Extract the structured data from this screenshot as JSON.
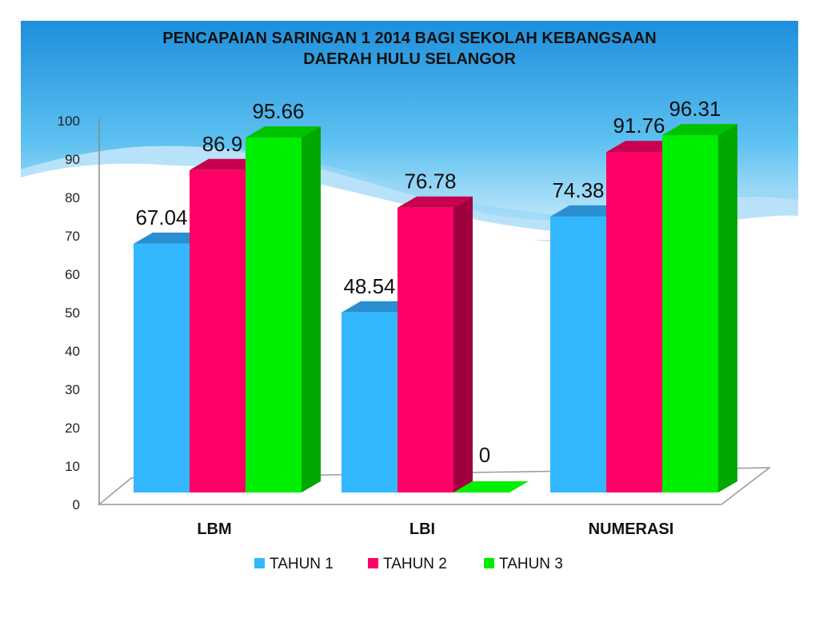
{
  "chart_data": {
    "type": "bar",
    "title": "PENCAPAIAN SARINGAN  1 2014 BAGI SEKOLAH KEBANGSAAN",
    "subtitle": "DAERAH HULU SELANGOR",
    "categories": [
      "LBM",
      "LBI",
      "NUMERASI"
    ],
    "series": [
      {
        "name": "TAHUN 1",
        "values": [
          67.04,
          48.54,
          74.38
        ],
        "labels": [
          "67.04",
          "48.54",
          "74.38"
        ]
      },
      {
        "name": "TAHUN 2",
        "values": [
          86.9,
          76.78,
          91.76
        ],
        "labels": [
          "86.9",
          "76.78",
          "91.76"
        ]
      },
      {
        "name": "TAHUN 3",
        "values": [
          95.66,
          0,
          96.31
        ],
        "labels": [
          "95.66",
          "0",
          "96.31"
        ]
      }
    ],
    "yticks": [
      "0",
      "10",
      "20",
      "30",
      "40",
      "50",
      "60",
      "70",
      "80",
      "90",
      "100"
    ],
    "ylim": [
      0,
      100
    ],
    "legend_position": "bottom",
    "grid": false,
    "style": "3d-bar",
    "colors": {
      "TAHUN 1": {
        "front": "#33b8ff",
        "top": "#2a8fd0",
        "side": "#1f7bbd"
      },
      "TAHUN 2": {
        "front": "#ff0066",
        "top": "#c8004f",
        "side": "#a0003f"
      },
      "TAHUN 3": {
        "front": "#00ee00",
        "top": "#00c300",
        "side": "#00a800"
      }
    }
  }
}
